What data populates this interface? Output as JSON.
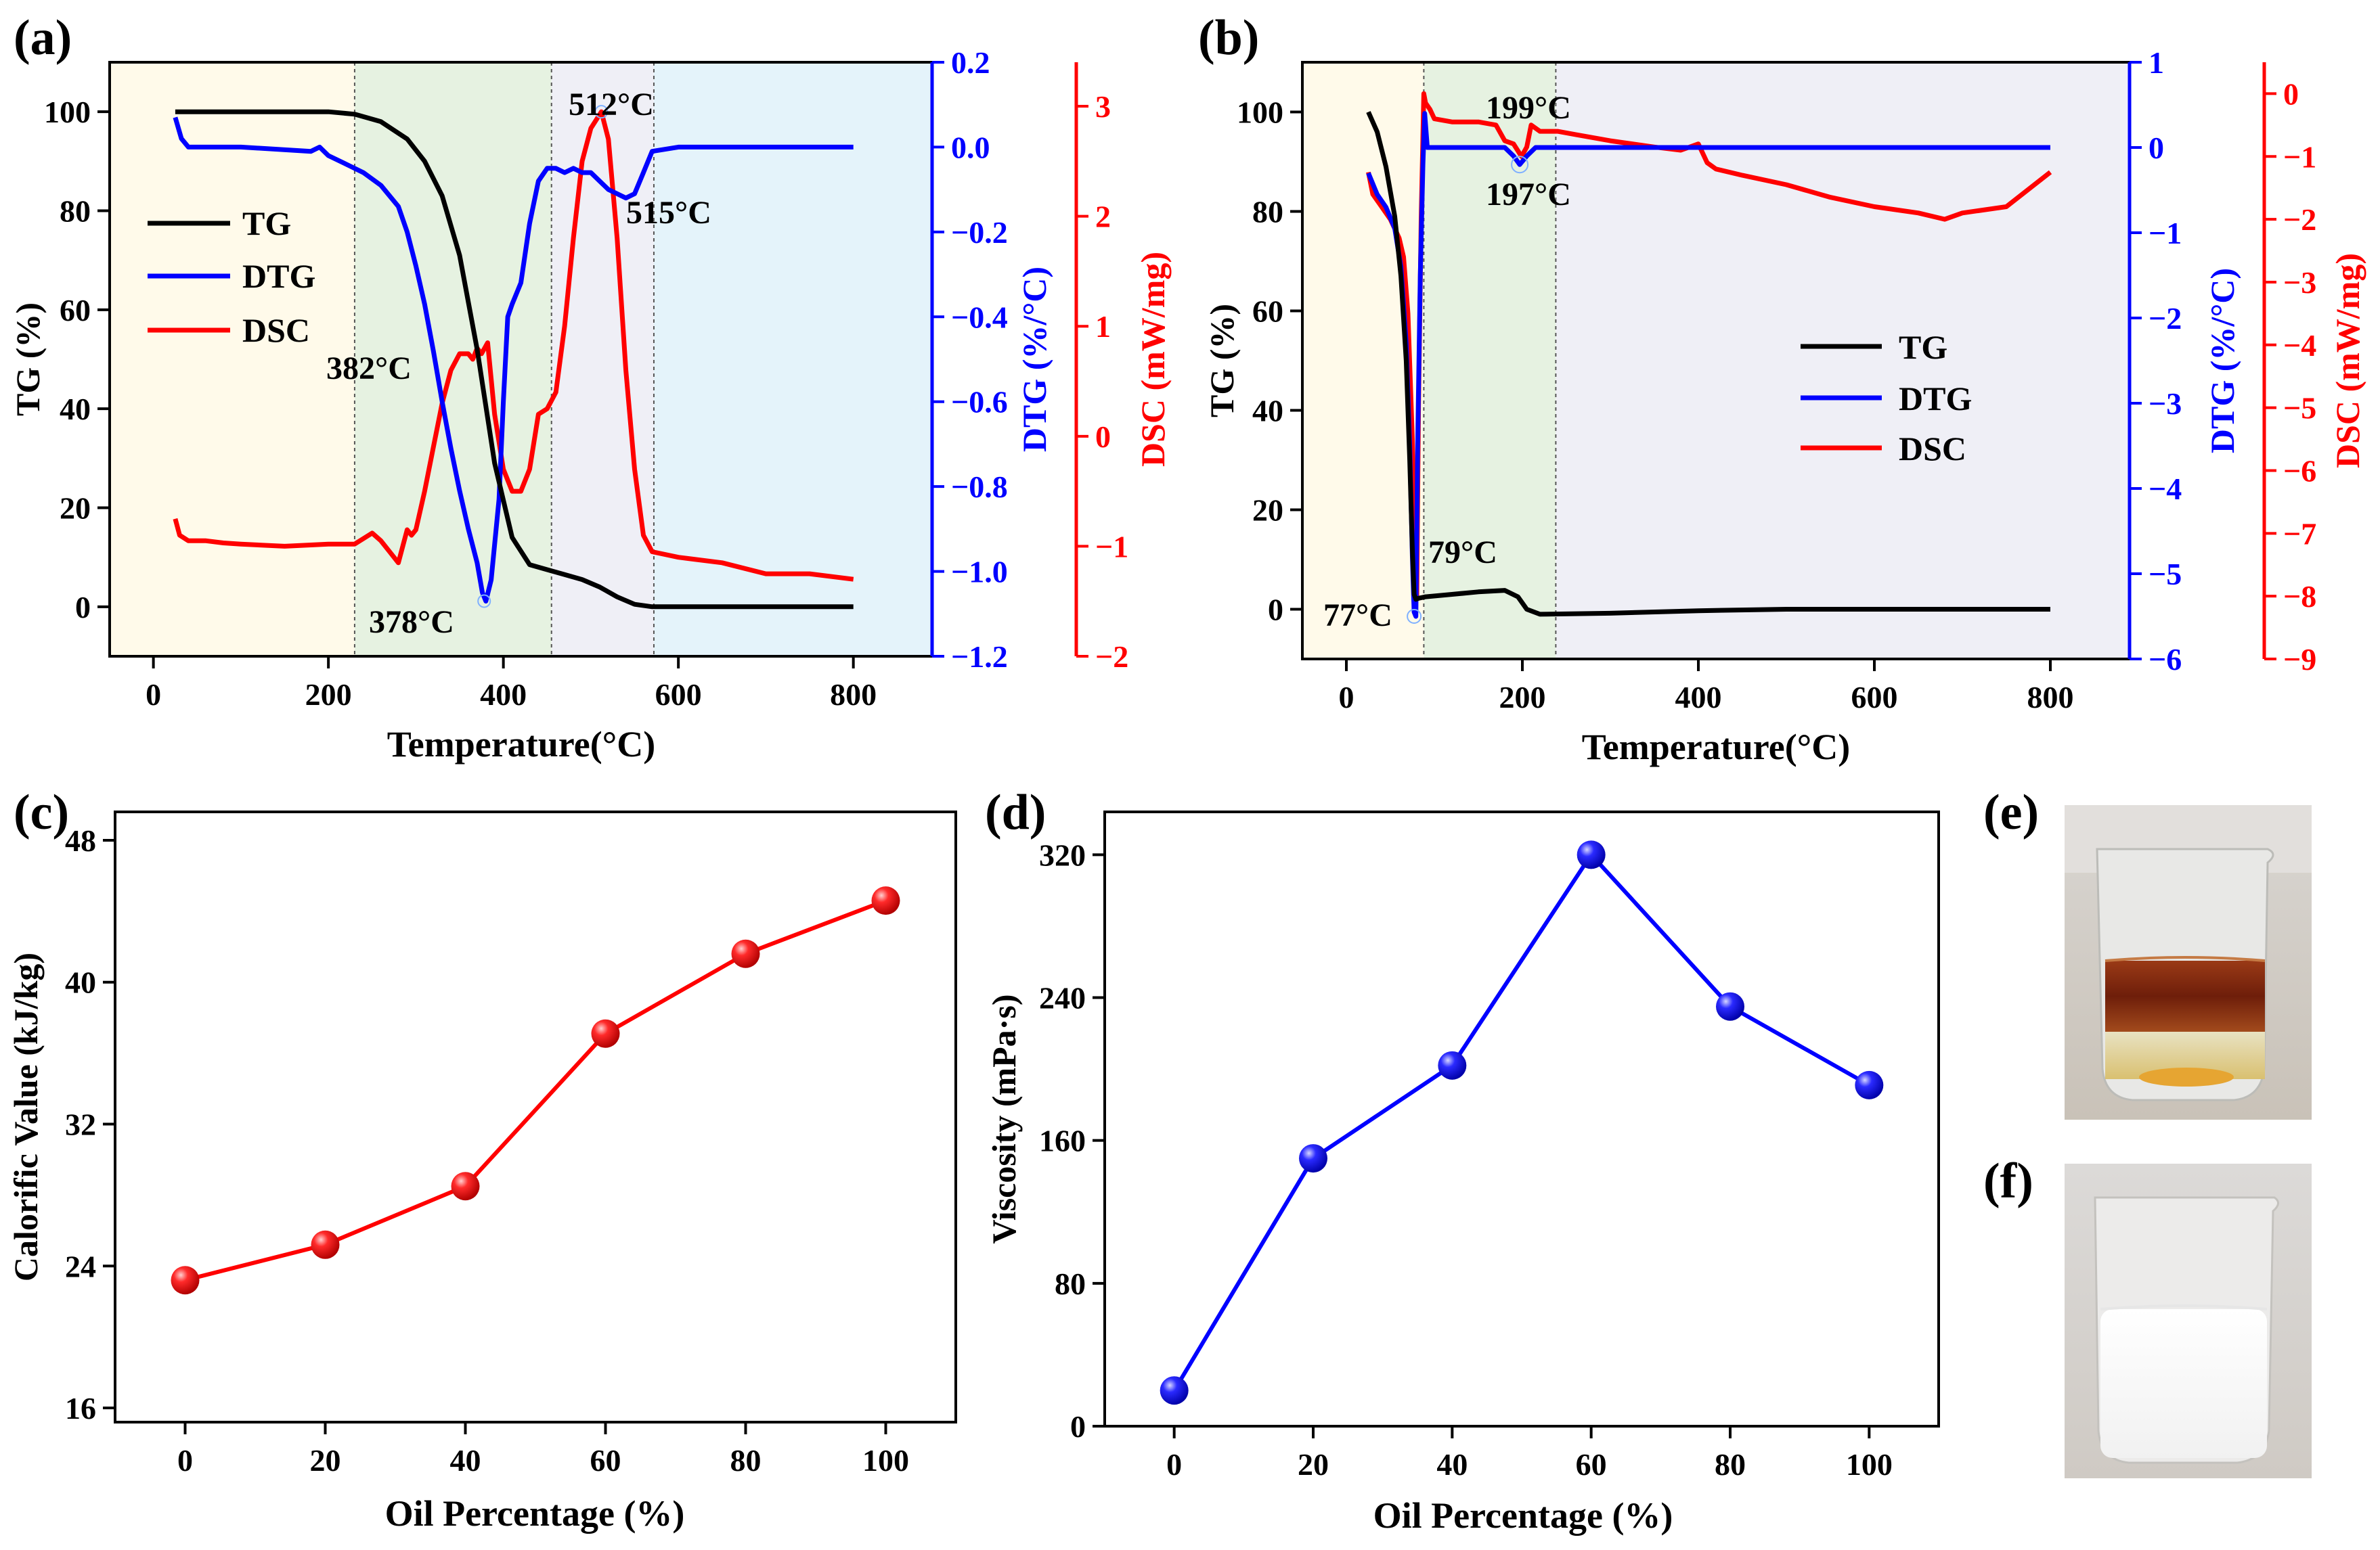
{
  "panel_labels": {
    "a": "(a)",
    "b": "(b)",
    "c": "(c)",
    "d": "(d)",
    "e": "(e)",
    "f": "(f)"
  },
  "colors": {
    "tg": "#000000",
    "dtg": "#0000ff",
    "dsc": "#ff0000",
    "point_c": "#ff0000",
    "point_d": "#0000ff"
  },
  "chart_data": [
    {
      "id": "a",
      "type": "line",
      "xlabel": "Temperature(°C)",
      "ylabel_left": "TG (%)",
      "ylabel_right1": "DTG (%/°C)",
      "ylabel_right2": "DSC (mW/mg)",
      "xlim": [
        -50,
        890
      ],
      "ylim_left": [
        -10,
        110
      ],
      "ylim_right1": [
        -1.2,
        0.2
      ],
      "ylim_right2": [
        -2,
        3.4
      ],
      "xticks": [
        "0",
        "200",
        "400",
        "600",
        "800"
      ],
      "yticks_left": [
        "0",
        "20",
        "40",
        "60",
        "80",
        "100"
      ],
      "yticks_right1": [
        "0.2",
        "0.0",
        "−0.2",
        "−0.4",
        "−0.6",
        "−0.8",
        "−1.0",
        "−1.2"
      ],
      "yticks_right2": [
        "3",
        "2",
        "1",
        "0",
        "−1",
        "−2"
      ],
      "regions": [
        {
          "from": -50,
          "to": 230,
          "color": "#fffaea"
        },
        {
          "from": 230,
          "to": 455,
          "color": "#e6f2e1"
        },
        {
          "from": 455,
          "to": 572,
          "color": "#efeff6"
        },
        {
          "from": 572,
          "to": 890,
          "color": "#e4f3fa"
        }
      ],
      "dividers": [
        230,
        455,
        572
      ],
      "legend": [
        "TG",
        "DTG",
        "DSC"
      ],
      "annotations": [
        "382°C",
        "378°C",
        "512°C",
        "515°C"
      ],
      "series": [
        {
          "name": "TG",
          "axis": "left",
          "x": [
            25,
            100,
            150,
            200,
            230,
            260,
            290,
            310,
            330,
            350,
            370,
            390,
            410,
            430,
            450,
            470,
            490,
            510,
            530,
            550,
            570,
            600,
            700,
            800
          ],
          "y": [
            100,
            100,
            100,
            100,
            99.5,
            98,
            94.5,
            90,
            83,
            71,
            52,
            29,
            14,
            8.5,
            7.5,
            6.5,
            5.5,
            4,
            2,
            0.5,
            0,
            0,
            0,
            0
          ]
        },
        {
          "name": "DTG",
          "axis": "right1",
          "x": [
            25,
            32,
            40,
            100,
            180,
            190,
            200,
            220,
            240,
            260,
            280,
            290,
            300,
            310,
            320,
            330,
            340,
            350,
            360,
            370,
            376,
            380,
            386,
            395,
            400,
            405,
            410,
            420,
            430,
            440,
            450,
            460,
            470,
            480,
            490,
            500,
            510,
            520,
            530,
            540,
            550,
            560,
            570,
            600,
            700,
            800
          ],
          "y": [
            0.07,
            0.02,
            0,
            0,
            -0.01,
            0,
            -0.02,
            -0.04,
            -0.06,
            -0.09,
            -0.14,
            -0.2,
            -0.28,
            -0.37,
            -0.48,
            -0.6,
            -0.71,
            -0.81,
            -0.9,
            -0.98,
            -1.05,
            -1.07,
            -1.02,
            -0.83,
            -0.6,
            -0.4,
            -0.37,
            -0.32,
            -0.18,
            -0.08,
            -0.05,
            -0.05,
            -0.06,
            -0.05,
            -0.06,
            -0.06,
            -0.08,
            -0.1,
            -0.11,
            -0.12,
            -0.11,
            -0.06,
            -0.01,
            0,
            0,
            0
          ]
        },
        {
          "name": "DSC",
          "axis": "right2",
          "x": [
            25,
            30,
            40,
            60,
            80,
            100,
            150,
            200,
            230,
            250,
            260,
            270,
            280,
            290,
            295,
            300,
            310,
            320,
            330,
            340,
            350,
            360,
            365,
            370,
            375,
            382,
            390,
            400,
            410,
            420,
            430,
            440,
            450,
            460,
            470,
            480,
            490,
            500,
            512,
            520,
            530,
            540,
            550,
            560,
            570,
            600,
            650,
            700,
            750,
            800
          ],
          "y": [
            -0.75,
            -0.9,
            -0.95,
            -0.95,
            -0.97,
            -0.98,
            -1.0,
            -0.98,
            -0.98,
            -0.88,
            -0.95,
            -1.05,
            -1.15,
            -0.85,
            -0.9,
            -0.85,
            -0.5,
            -0.1,
            0.3,
            0.6,
            0.75,
            0.75,
            0.7,
            0.8,
            0.75,
            0.85,
            0.2,
            -0.3,
            -0.5,
            -0.5,
            -0.3,
            0.2,
            0.25,
            0.4,
            1.0,
            1.8,
            2.5,
            2.8,
            2.95,
            2.7,
            1.8,
            0.6,
            -0.3,
            -0.9,
            -1.05,
            -1.1,
            -1.15,
            -1.25,
            -1.25,
            -1.3
          ]
        }
      ]
    },
    {
      "id": "b",
      "type": "line",
      "xlabel": "Temperature(°C)",
      "ylabel_left": "TG (%)",
      "ylabel_right1": "DTG (%/°C)",
      "ylabel_right2": "DSC (mW/mg)",
      "xlim": [
        -50,
        890
      ],
      "ylim_left": [
        -10,
        110
      ],
      "ylim_right1": [
        -6,
        1
      ],
      "ylim_right2": [
        -9,
        0.5
      ],
      "xticks": [
        "0",
        "200",
        "400",
        "600",
        "800"
      ],
      "yticks_left": [
        "0",
        "20",
        "40",
        "60",
        "80",
        "100"
      ],
      "yticks_right1": [
        "1",
        "0",
        "−1",
        "−2",
        "−3",
        "−4",
        "−5",
        "−6"
      ],
      "yticks_right2": [
        "0",
        "−1",
        "−2",
        "−3",
        "−4",
        "−5",
        "−6",
        "−7",
        "−8",
        "−9"
      ],
      "regions": [
        {
          "from": -50,
          "to": 88,
          "color": "#fffaea"
        },
        {
          "from": 88,
          "to": 238,
          "color": "#e6f2e1"
        },
        {
          "from": 238,
          "to": 890,
          "color": "#efeff6"
        }
      ],
      "dividers": [
        88,
        238
      ],
      "legend": [
        "TG",
        "DTG",
        "DSC"
      ],
      "annotations": [
        "199°C",
        "197°C",
        "79°C",
        "77°C"
      ],
      "series": [
        {
          "name": "TG",
          "axis": "left",
          "x": [
            25,
            35,
            45,
            55,
            62,
            68,
            72,
            75,
            77,
            79,
            82,
            90,
            120,
            150,
            180,
            195,
            205,
            220,
            300,
            400,
            500,
            600,
            700,
            800
          ],
          "y": [
            100,
            96,
            89,
            79,
            67,
            50,
            30,
            12,
            3,
            2,
            2.2,
            2.5,
            3,
            3.5,
            3.8,
            2.5,
            0,
            -1,
            -0.8,
            -0.3,
            0,
            0,
            0,
            0
          ]
        },
        {
          "name": "DTG",
          "axis": "right1",
          "x": [
            25,
            35,
            45,
            55,
            62,
            68,
            72,
            75,
            77,
            79,
            81,
            84,
            87,
            89,
            92,
            100,
            150,
            180,
            190,
            197,
            205,
            215,
            250,
            400,
            600,
            800
          ],
          "y": [
            -0.3,
            -0.55,
            -0.7,
            -0.95,
            -1.4,
            -2.3,
            -3.5,
            -4.8,
            -5.45,
            -5.5,
            -3.5,
            -1.5,
            -0.2,
            0.4,
            0,
            0,
            0,
            0,
            -0.1,
            -0.2,
            -0.1,
            0,
            0,
            0,
            0,
            0
          ]
        },
        {
          "name": "DSC",
          "axis": "right2",
          "x": [
            25,
            30,
            40,
            50,
            60,
            65,
            70,
            75,
            78,
            80,
            82,
            85,
            88,
            90,
            95,
            100,
            120,
            150,
            170,
            180,
            190,
            199,
            205,
            210,
            220,
            240,
            260,
            300,
            350,
            380,
            400,
            410,
            420,
            450,
            500,
            550,
            600,
            650,
            680,
            700,
            750,
            800
          ],
          "y": [
            -1.25,
            -1.6,
            -1.8,
            -2.0,
            -2.3,
            -2.6,
            -3.5,
            -5.5,
            -7.5,
            -8.0,
            -5.0,
            -2.0,
            0.0,
            -0.15,
            -0.25,
            -0.4,
            -0.45,
            -0.45,
            -0.5,
            -0.75,
            -0.8,
            -1.0,
            -0.85,
            -0.5,
            -0.6,
            -0.6,
            -0.65,
            -0.75,
            -0.85,
            -0.9,
            -0.8,
            -1.1,
            -1.2,
            -1.3,
            -1.45,
            -1.65,
            -1.8,
            -1.9,
            -2.0,
            -1.9,
            -1.8,
            -1.25
          ]
        }
      ]
    },
    {
      "id": "c",
      "type": "line",
      "xlabel": "Oil Percentage (%)",
      "ylabel": "Calorific Value (kJ/kg)",
      "xlim": [
        -10,
        110
      ],
      "ylim": [
        15.2,
        49.6
      ],
      "xticks": [
        "0",
        "20",
        "40",
        "60",
        "80",
        "100"
      ],
      "yticks": [
        "16",
        "24",
        "32",
        "40",
        "48"
      ],
      "x": [
        0,
        20,
        40,
        60,
        80,
        100
      ],
      "y": [
        23.2,
        25.2,
        28.5,
        37.1,
        41.6,
        44.6
      ]
    },
    {
      "id": "d",
      "type": "line",
      "xlabel": "Oil Percentage (%)",
      "ylabel": "Viscosity (mPa·s)",
      "xlim": [
        -10,
        110
      ],
      "ylim": [
        0,
        344
      ],
      "xticks": [
        "0",
        "20",
        "40",
        "60",
        "80",
        "100"
      ],
      "yticks": [
        "0",
        "80",
        "160",
        "240",
        "320"
      ],
      "x": [
        0,
        20,
        40,
        60,
        80,
        100
      ],
      "y": [
        20,
        150,
        202,
        320,
        235,
        191
      ]
    }
  ],
  "photos": {
    "e": "beaker with separated oil layer",
    "f": "beaker with white emulsion"
  }
}
